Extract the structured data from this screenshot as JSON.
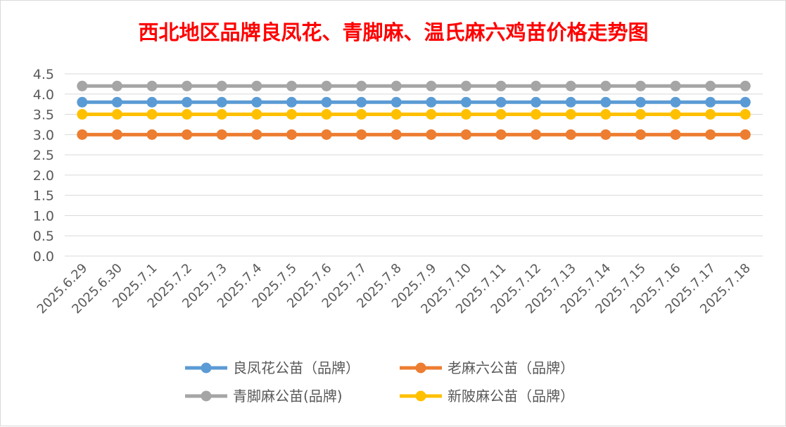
{
  "chart_data": {
    "type": "line",
    "title": "西北地区品牌良凤花、青脚麻、温氏麻六鸡苗价格走势图",
    "xlabel": "",
    "ylabel": "",
    "ylim": [
      0,
      4.5
    ],
    "ytick_step": 0.5,
    "grid": true,
    "legend_position": "bottom",
    "colors": {
      "title": "#ff0000",
      "grid": "#d9d9d9",
      "tick_label": "#595959"
    },
    "x": [
      "2025.6.29",
      "2025.6.30",
      "2025.7.1",
      "2025.7.2",
      "2025.7.3",
      "2025.7.4",
      "2025.7.5",
      "2025.7.6",
      "2025.7.7",
      "2025.7.8",
      "2025.7.9",
      "2025.7.10",
      "2025.7.11",
      "2025.7.12",
      "2025.7.13",
      "2025.7.14",
      "2025.7.15",
      "2025.7.16",
      "2025.7.17",
      "2025.7.18"
    ],
    "yticks": [
      "0.0",
      "0.5",
      "1.0",
      "1.5",
      "2.0",
      "2.5",
      "3.0",
      "3.5",
      "4.0",
      "4.5"
    ],
    "series": [
      {
        "name": "良凤花公苗（品牌）",
        "color": "#5b9bd5",
        "values": [
          3.8,
          3.8,
          3.8,
          3.8,
          3.8,
          3.8,
          3.8,
          3.8,
          3.8,
          3.8,
          3.8,
          3.8,
          3.8,
          3.8,
          3.8,
          3.8,
          3.8,
          3.8,
          3.8,
          3.8
        ]
      },
      {
        "name": "老麻六公苗（品牌）",
        "color": "#ed7d31",
        "values": [
          3.0,
          3.0,
          3.0,
          3.0,
          3.0,
          3.0,
          3.0,
          3.0,
          3.0,
          3.0,
          3.0,
          3.0,
          3.0,
          3.0,
          3.0,
          3.0,
          3.0,
          3.0,
          3.0,
          3.0
        ]
      },
      {
        "name": "青脚麻公苗(品牌)",
        "color": "#a5a5a5",
        "values": [
          4.2,
          4.2,
          4.2,
          4.2,
          4.2,
          4.2,
          4.2,
          4.2,
          4.2,
          4.2,
          4.2,
          4.2,
          4.2,
          4.2,
          4.2,
          4.2,
          4.2,
          4.2,
          4.2,
          4.2
        ]
      },
      {
        "name": "新陂麻公苗（品牌）",
        "color": "#ffc000",
        "values": [
          3.5,
          3.5,
          3.5,
          3.5,
          3.5,
          3.5,
          3.5,
          3.5,
          3.5,
          3.5,
          3.5,
          3.5,
          3.5,
          3.5,
          3.5,
          3.5,
          3.5,
          3.5,
          3.5,
          3.5
        ]
      }
    ]
  }
}
